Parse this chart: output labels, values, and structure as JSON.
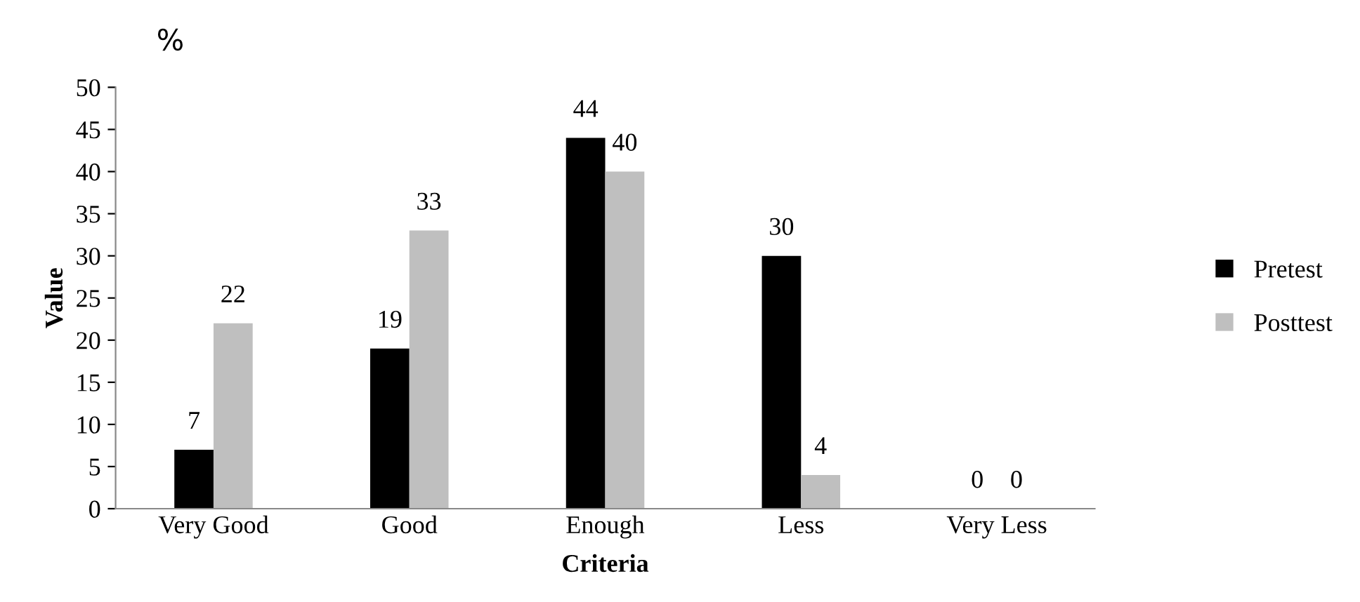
{
  "chart_data": {
    "type": "bar",
    "title": "%",
    "xlabel": "Criteria",
    "ylabel": "Value",
    "categories": [
      "Very Good",
      "Good",
      "Enough",
      "Less",
      "Very Less"
    ],
    "series": [
      {
        "name": "Pretest",
        "color": "#000000",
        "values": [
          7,
          19,
          44,
          30,
          0
        ]
      },
      {
        "name": "Posttest",
        "color": "#bfbfbf",
        "values": [
          22,
          33,
          40,
          4,
          0
        ]
      }
    ],
    "ylim": [
      0,
      50
    ],
    "yticks": [
      0,
      5,
      10,
      15,
      20,
      25,
      30,
      35,
      40,
      45,
      50
    ],
    "data_labels": true,
    "grid": false,
    "legend": "right"
  }
}
